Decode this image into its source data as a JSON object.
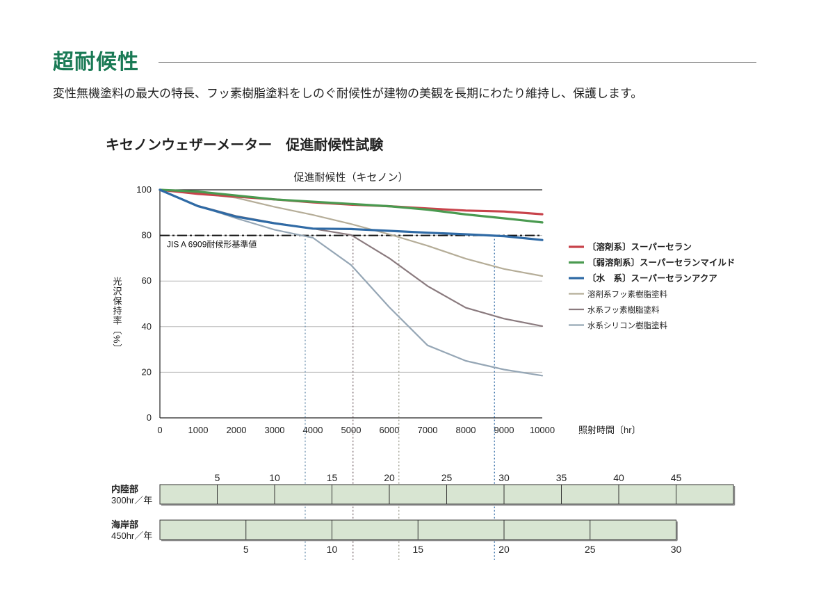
{
  "header": {
    "title": "超耐候性",
    "subtitle": "変性無機塗料の最大の特長、フッ素樹脂塗料をしのぐ耐候性が建物の美観を長期にわたり維持し、保護します。"
  },
  "test_title": "キセノンウェザーメーター　促進耐候性試験",
  "chart_data": {
    "type": "line",
    "title": "促進耐候性（キセノン）",
    "xlabel": "照射時間〔hr〕",
    "ylabel": "光沢保持率〔%〕",
    "xlim": [
      0,
      10000
    ],
    "ylim": [
      0,
      100
    ],
    "xticks": [
      0,
      1000,
      2000,
      3000,
      4000,
      5000,
      6000,
      7000,
      8000,
      9000,
      10000
    ],
    "yticks": [
      0,
      20,
      40,
      60,
      80,
      100
    ],
    "grid": "horizontal",
    "legend_position": "right",
    "x": [
      0,
      1000,
      2000,
      3000,
      4000,
      5000,
      6000,
      7000,
      8000,
      9000,
      10000
    ],
    "reference_line": {
      "label": "JIS A 6909耐候形基準値",
      "value": 80
    },
    "series": [
      {
        "name": "〔溶剤系〕スーパーセラン",
        "color": "#c8434b",
        "width": 3.2,
        "bold": true,
        "values": [
          100,
          98.2,
          97,
          95.8,
          94.5,
          93.5,
          92.8,
          91.8,
          90.9,
          90.5,
          89.3
        ]
      },
      {
        "name": "〔弱溶剤系〕スーパーセランマイルド",
        "color": "#4a9a50",
        "width": 3.2,
        "bold": true,
        "values": [
          100,
          99.2,
          97.5,
          95.8,
          94.8,
          93.8,
          92.8,
          91.3,
          89.2,
          87.5,
          85.7
        ]
      },
      {
        "name": "〔水　系〕スーパーセランアクア",
        "color": "#2f6aa5",
        "width": 3.2,
        "bold": true,
        "values": [
          100,
          92.8,
          88.2,
          85.3,
          83,
          82.8,
          82,
          81.2,
          80.5,
          79.7,
          78
        ]
      },
      {
        "name": "溶剤系フッ素樹脂塗料",
        "color": "#b5ad98",
        "width": 2.2,
        "bold": false,
        "values": [
          100,
          98.5,
          96.5,
          92.5,
          89,
          85,
          80.5,
          75.5,
          69.8,
          65.3,
          62.2
        ]
      },
      {
        "name": "水系フッ素樹脂塗料",
        "color": "#8a7a7e",
        "width": 2.2,
        "bold": false,
        "values": [
          100,
          93,
          88.5,
          85.5,
          83,
          80.2,
          70,
          57.8,
          48.3,
          43.5,
          40.2
        ]
      },
      {
        "name": "水系シリコン樹脂塗料",
        "color": "#95a6b5",
        "width": 2.2,
        "bold": false,
        "values": [
          100,
          93,
          87.5,
          82.5,
          79,
          67,
          48.5,
          31.8,
          25,
          21.2,
          18.5
        ]
      }
    ],
    "markers": [
      {
        "x": 3800,
        "color": "#6b8fae"
      },
      {
        "x": 5050,
        "color": "#7a6a6e"
      },
      {
        "x": 6250,
        "color": "#9a9a8a"
      },
      {
        "x": 8750,
        "color": "#2f6aa5"
      }
    ],
    "year_scales": [
      {
        "label_line1": "内陸部",
        "label_line2": "300hr／年",
        "hours_per_year": 300,
        "max_years": 50,
        "ticks": [
          5,
          10,
          15,
          20,
          25,
          30,
          35,
          40,
          45
        ],
        "tick_labels_position": "above"
      },
      {
        "label_line1": "海岸部",
        "label_line2": "450hr／年",
        "hours_per_year": 450,
        "max_years": 30,
        "ticks": [
          5,
          10,
          15,
          20,
          25,
          30
        ],
        "tick_labels_position": "below"
      }
    ]
  }
}
